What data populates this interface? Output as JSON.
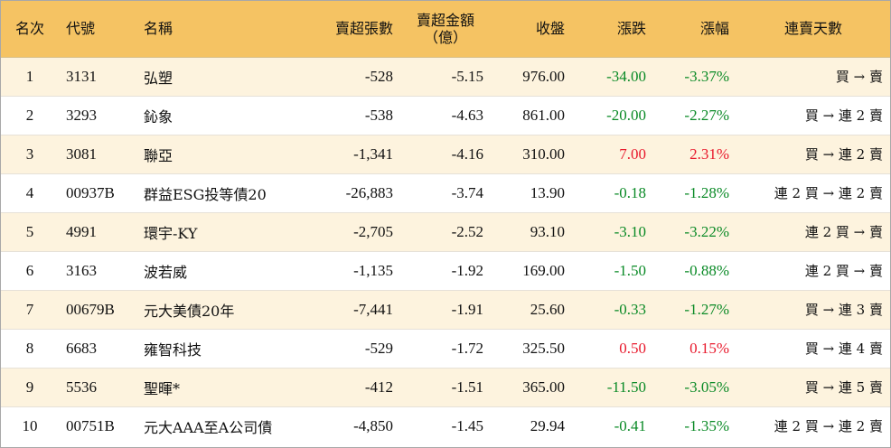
{
  "colors": {
    "header_bg": "#f5c363",
    "row_alt_bg": "#fdf3de",
    "row_bg": "#ffffff",
    "up": "#e8192c",
    "down": "#0a8a26"
  },
  "headers": {
    "rank": "名次",
    "code": "代號",
    "name": "名稱",
    "net_sell_shares": "賣超張數",
    "net_sell_amount_line1": "賣超金額",
    "net_sell_amount_line2": "（億）",
    "close": "收盤",
    "change": "漲跌",
    "change_pct": "漲幅",
    "streak": "連賣天數"
  },
  "rows": [
    {
      "rank": "1",
      "code": "3131",
      "name": "弘塑",
      "shares": "-528",
      "amount": "-5.15",
      "close": "976.00",
      "change": "-34.00",
      "pct": "-3.37%",
      "dir": "down",
      "streak": "買 → 賣"
    },
    {
      "rank": "2",
      "code": "3293",
      "name": "鈊象",
      "shares": "-538",
      "amount": "-4.63",
      "close": "861.00",
      "change": "-20.00",
      "pct": "-2.27%",
      "dir": "down",
      "streak": "買 → 連 2 賣"
    },
    {
      "rank": "3",
      "code": "3081",
      "name": "聯亞",
      "shares": "-1,341",
      "amount": "-4.16",
      "close": "310.00",
      "change": "7.00",
      "pct": "2.31%",
      "dir": "up",
      "streak": "買 → 連 2 賣"
    },
    {
      "rank": "4",
      "code": "00937B",
      "name": "群益ESG投等債20",
      "shares": "-26,883",
      "amount": "-3.74",
      "close": "13.90",
      "change": "-0.18",
      "pct": "-1.28%",
      "dir": "down",
      "streak": "連 2 買 → 連 2 賣"
    },
    {
      "rank": "5",
      "code": "4991",
      "name": "環宇-KY",
      "shares": "-2,705",
      "amount": "-2.52",
      "close": "93.10",
      "change": "-3.10",
      "pct": "-3.22%",
      "dir": "down",
      "streak": "連 2 買 → 賣"
    },
    {
      "rank": "6",
      "code": "3163",
      "name": "波若威",
      "shares": "-1,135",
      "amount": "-1.92",
      "close": "169.00",
      "change": "-1.50",
      "pct": "-0.88%",
      "dir": "down",
      "streak": "連 2 買 → 賣"
    },
    {
      "rank": "7",
      "code": "00679B",
      "name": "元大美債20年",
      "shares": "-7,441",
      "amount": "-1.91",
      "close": "25.60",
      "change": "-0.33",
      "pct": "-1.27%",
      "dir": "down",
      "streak": "買 → 連 3 賣"
    },
    {
      "rank": "8",
      "code": "6683",
      "name": "雍智科技",
      "shares": "-529",
      "amount": "-1.72",
      "close": "325.50",
      "change": "0.50",
      "pct": "0.15%",
      "dir": "up",
      "streak": "買 → 連 4 賣"
    },
    {
      "rank": "9",
      "code": "5536",
      "name": "聖暉*",
      "shares": "-412",
      "amount": "-1.51",
      "close": "365.00",
      "change": "-11.50",
      "pct": "-3.05%",
      "dir": "down",
      "streak": "買 → 連 5 賣"
    },
    {
      "rank": "10",
      "code": "00751B",
      "name": "元大AAA至A公司債",
      "shares": "-4,850",
      "amount": "-1.45",
      "close": "29.94",
      "change": "-0.41",
      "pct": "-1.35%",
      "dir": "down",
      "streak": "連 2 買 → 連 2 賣"
    }
  ]
}
